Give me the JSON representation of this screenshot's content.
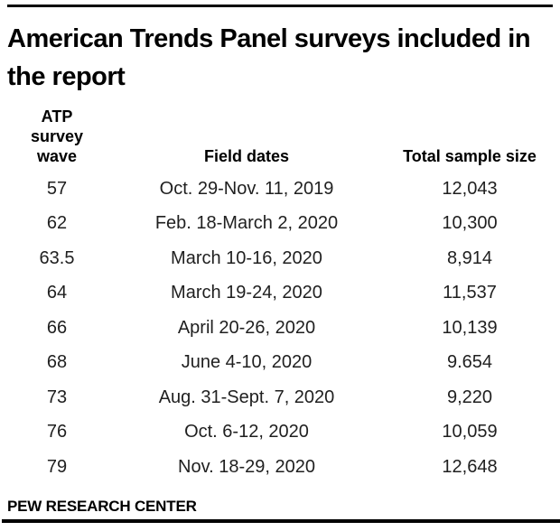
{
  "page": {
    "background": "#ffffff",
    "text_color": "#000000",
    "rule_color": "#000000"
  },
  "title": "American Trends Panel surveys included in the report",
  "table": {
    "headers": {
      "wave": "ATP survey wave",
      "dates": "Field dates",
      "size": "Total sample size"
    },
    "rows": [
      {
        "wave": "57",
        "dates": "Oct. 29-Nov. 11, 2019",
        "size": "12,043"
      },
      {
        "wave": "62",
        "dates": "Feb. 18-March 2, 2020",
        "size": "10,300"
      },
      {
        "wave": "63.5",
        "dates": "March 10-16, 2020",
        "size": "8,914"
      },
      {
        "wave": "64",
        "dates": "March 19-24, 2020",
        "size": "11,537"
      },
      {
        "wave": "66",
        "dates": "April 20-26, 2020",
        "size": "10,139"
      },
      {
        "wave": "68",
        "dates": "June 4-10, 2020",
        "size": "9.654"
      },
      {
        "wave": "73",
        "dates": "Aug. 31-Sept. 7, 2020",
        "size": "9,220"
      },
      {
        "wave": "76",
        "dates": "Oct. 6-12, 2020",
        "size": "10,059"
      },
      {
        "wave": "79",
        "dates": "Nov. 18-29, 2020",
        "size": "12,648"
      }
    ]
  },
  "footer": "PEW RESEARCH CENTER"
}
